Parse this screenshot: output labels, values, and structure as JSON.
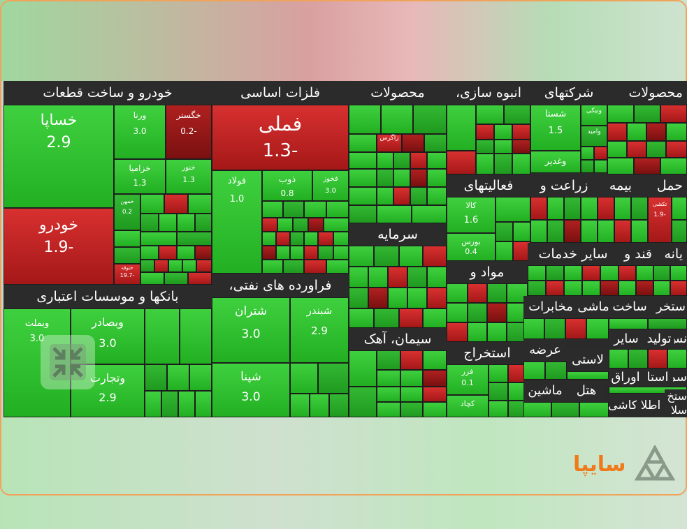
{
  "sectors": {
    "auto": "خودرو و ساخت قطعات",
    "metals": "فلزات اساسی",
    "products": "محصولات",
    "mass_construction": "انبوه سازی،",
    "companies": "شرکتهای",
    "products2": "محصولات",
    "banks": "بانکها و موسسات اعتباری",
    "oil": "فراورده های نفتی،",
    "investment": "سرمایه",
    "cement": "سیمان، آهک",
    "materials": "مواد و",
    "extraction": "استخراج",
    "agri": "زراعت و",
    "activities": "فعالیتهای",
    "insurance": "بیمه",
    "transport": "حمل",
    "services": "سایر خدمات",
    "sugar": "قند و",
    "factory": "یانه",
    "build": "ساخت",
    "machine": "ماشی",
    "telecom": "مخابرات",
    "extr2": "ستخر",
    "other1": "سایر",
    "production": "تولید",
    "instr": "نس",
    "display": "عرضه",
    "plastic": "لاستی",
    "paper": "اوراق",
    "stone": "استا",
    "hotel": "هتل",
    "machine2": "ماشین",
    "atlas": "اطلا",
    "tile": "کاشی",
    "sima": "سما",
    "sela": "سلا",
    "estkh": "ستخ"
  },
  "tiles": {
    "khsapa": {
      "name": "خساپا",
      "value": "2.9"
    },
    "khodro": {
      "name": "خودرو",
      "value": "1.9-"
    },
    "varna": {
      "name": "ورنا",
      "value": "3.0"
    },
    "khegostar": {
      "name": "خگستر",
      "value": "0.2-"
    },
    "khzamia": {
      "name": "خزامیا",
      "value": "1.3"
    },
    "khnor": {
      "name": "خنور",
      "value": "1.3"
    },
    "khmehan": {
      "name": "خمهن",
      "value": "0.2"
    },
    "khtog": {
      "name": "ختوقه",
      "value": "19.7-"
    },
    "fameli": {
      "name": "فملی",
      "value": "1.3-"
    },
    "foulad": {
      "name": "فولاد",
      "value": "1.0"
    },
    "zob": {
      "name": "ذوب",
      "value": "0.8"
    },
    "fkhoz": {
      "name": "فخوز",
      "value": "3.0"
    },
    "vebmellat": {
      "name": "وبملت",
      "value": "3.0"
    },
    "vbsader": {
      "name": "وبصادر",
      "value": "3.0"
    },
    "vtejarat": {
      "name": "وتجارت",
      "value": "2.9"
    },
    "shetran": {
      "name": "شتران",
      "value": "3.0"
    },
    "shbandar": {
      "name": "شبندر",
      "value": "2.9"
    },
    "shapna": {
      "name": "شپنا",
      "value": "3.0"
    },
    "shasta": {
      "name": "شستا",
      "value": "1.5"
    },
    "vghadir": {
      "name": "وغدیر",
      "value": ""
    },
    "kala": {
      "name": "کالا",
      "value": "1.6"
    },
    "bourse": {
      "name": "بورس",
      "value": "0.4"
    },
    "fazar": {
      "name": "فزر",
      "value": "0.1"
    },
    "kgohar": {
      "name": "کچاد",
      "value": ""
    },
    "tkesh": {
      "name": "تکشی",
      "value": "1.9-"
    },
    "vanik": {
      "name": "ونیکی",
      "value": ""
    },
    "vamid": {
      "name": "وامید",
      "value": ""
    },
    "zagros": {
      "name": "زاگرس",
      "value": ""
    },
    "mobin": {
      "name": "مبین",
      "value": ""
    }
  },
  "brand": {
    "name": "سایپا"
  },
  "icons": {
    "shrink": "shrink-arrows-icon",
    "logo": "saipa-logo-icon"
  },
  "colors": {
    "up": "#2fc42f",
    "down": "#c42020",
    "header": "#2b2b2b",
    "brand": "#f07a1a"
  }
}
